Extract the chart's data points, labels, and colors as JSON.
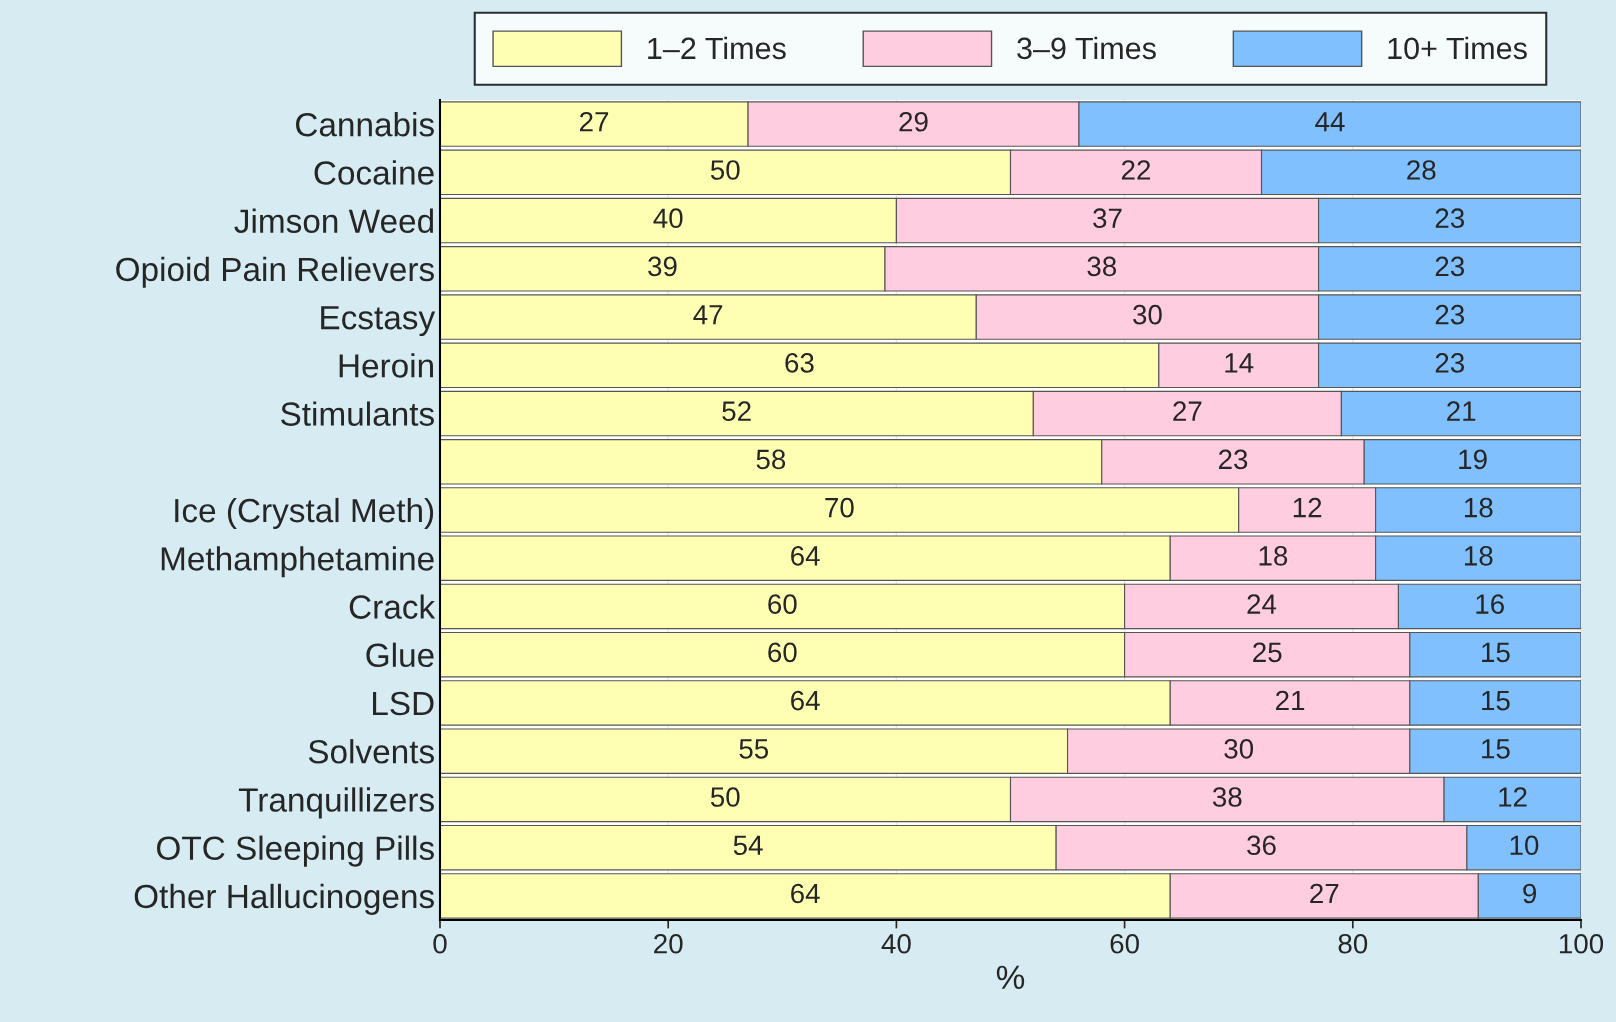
{
  "chart_data": {
    "type": "bar",
    "orientation": "horizontal",
    "stacked": true,
    "xlabel": "%",
    "categories": [
      "Cannabis",
      "Cocaine",
      "Jimson Weed",
      "Opioid Pain Relievers",
      "Ecstasy",
      "Heroin",
      "Stimulants",
      null,
      "Ice (Crystal Meth)",
      "Methamphetamine",
      "Crack",
      "Glue",
      "LSD",
      "Solvents",
      "Tranquillizers",
      "OTC Sleeping Pills",
      "Other Hallucinogens"
    ],
    "series": [
      {
        "name": "1–2 Times",
        "color": "#ffffb3",
        "values": [
          27,
          50,
          40,
          39,
          47,
          63,
          52,
          58,
          70,
          64,
          60,
          60,
          64,
          55,
          50,
          54,
          64
        ]
      },
      {
        "name": "3–9 Times",
        "color": "#ffcce0",
        "values": [
          29,
          22,
          37,
          38,
          30,
          14,
          27,
          23,
          12,
          18,
          24,
          25,
          21,
          30,
          38,
          36,
          27
        ]
      },
      {
        "name": "10+ Times",
        "color": "#80c0ff",
        "values": [
          44,
          28,
          23,
          23,
          23,
          23,
          21,
          19,
          18,
          18,
          16,
          15,
          15,
          15,
          12,
          10,
          9
        ]
      }
    ],
    "xlim": [
      0,
      100
    ],
    "xticks": [
      0,
      20,
      40,
      60,
      80,
      100
    ],
    "grid": "x",
    "legend": "top",
    "data_labels": true
  }
}
